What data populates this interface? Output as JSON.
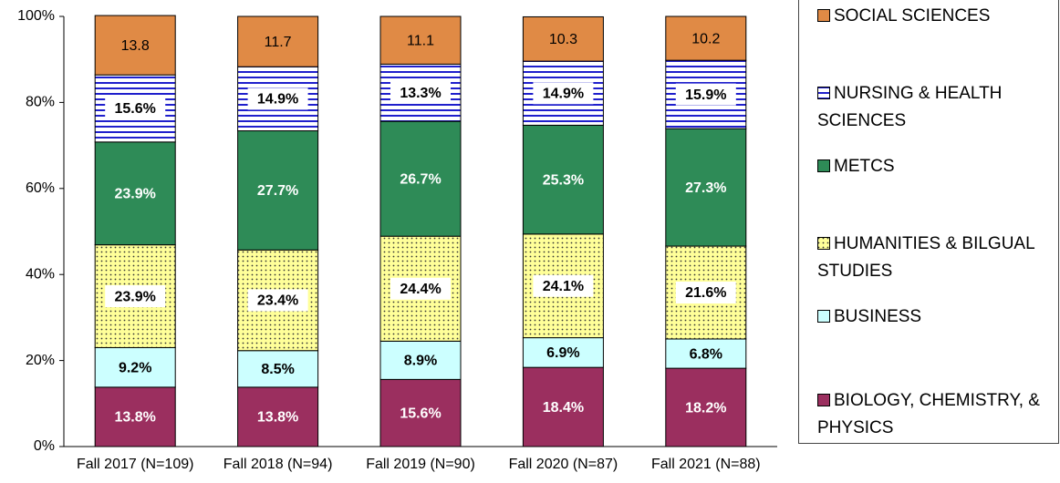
{
  "chart_data": {
    "type": "stacked_bar",
    "categories": [
      "Fall 2017 (N=109)",
      "Fall 2018 (N=94)",
      "Fall 2019 (N=90)",
      "Fall 2020 (N=87)",
      "Fall 2021 (N=88)"
    ],
    "series": [
      {
        "name": "BIOLOGY, CHEMISTRY, & PHYSICS",
        "color": "#9b2f5f",
        "values": [
          13.8,
          13.8,
          15.6,
          18.4,
          18.2
        ],
        "value_labels": [
          "13.8%",
          "13.8%",
          "15.6%",
          "18.4%",
          "18.2%"
        ]
      },
      {
        "name": "BUSINESS",
        "color": "#ccffff",
        "values": [
          9.2,
          8.5,
          8.9,
          6.9,
          6.8
        ],
        "value_labels": [
          "9.2%",
          "8.5%",
          "8.9%",
          "6.9%",
          "6.8%"
        ]
      },
      {
        "name": "HUMANITIES & BILGUAL STUDIES",
        "color": "#ffff99",
        "pattern": "dots",
        "values": [
          23.9,
          23.4,
          24.4,
          24.1,
          21.6
        ],
        "value_labels": [
          "23.9%",
          "23.4%",
          "24.4%",
          "24.1%",
          "21.6%"
        ]
      },
      {
        "name": "METCS",
        "color": "#2e8b57",
        "values": [
          23.9,
          27.7,
          26.7,
          25.3,
          27.3
        ],
        "value_labels": [
          "23.9%",
          "27.7%",
          "26.7%",
          "25.3%",
          "27.3%"
        ]
      },
      {
        "name": "NURSING & HEALTH SCIENCES",
        "color": "#1f1fcc",
        "pattern": "stripes",
        "values": [
          15.6,
          14.9,
          13.3,
          14.9,
          15.9
        ],
        "value_labels": [
          "15.6%",
          "14.9%",
          "13.3%",
          "14.9%",
          "15.9%"
        ]
      },
      {
        "name": "SOCIAL SCIENCES",
        "color": "#e08a45",
        "values": [
          13.8,
          11.7,
          11.1,
          10.3,
          10.2
        ]
      }
    ],
    "ylim": [
      0,
      100
    ],
    "yticks": [
      {
        "value": 0,
        "label": "0%"
      },
      {
        "value": 20,
        "label": "20%"
      },
      {
        "value": 40,
        "label": "40%"
      },
      {
        "value": 60,
        "label": "60%"
      },
      {
        "value": 80,
        "label": "80%"
      },
      {
        "value": 100,
        "label": "100%"
      }
    ],
    "legend": "right"
  }
}
